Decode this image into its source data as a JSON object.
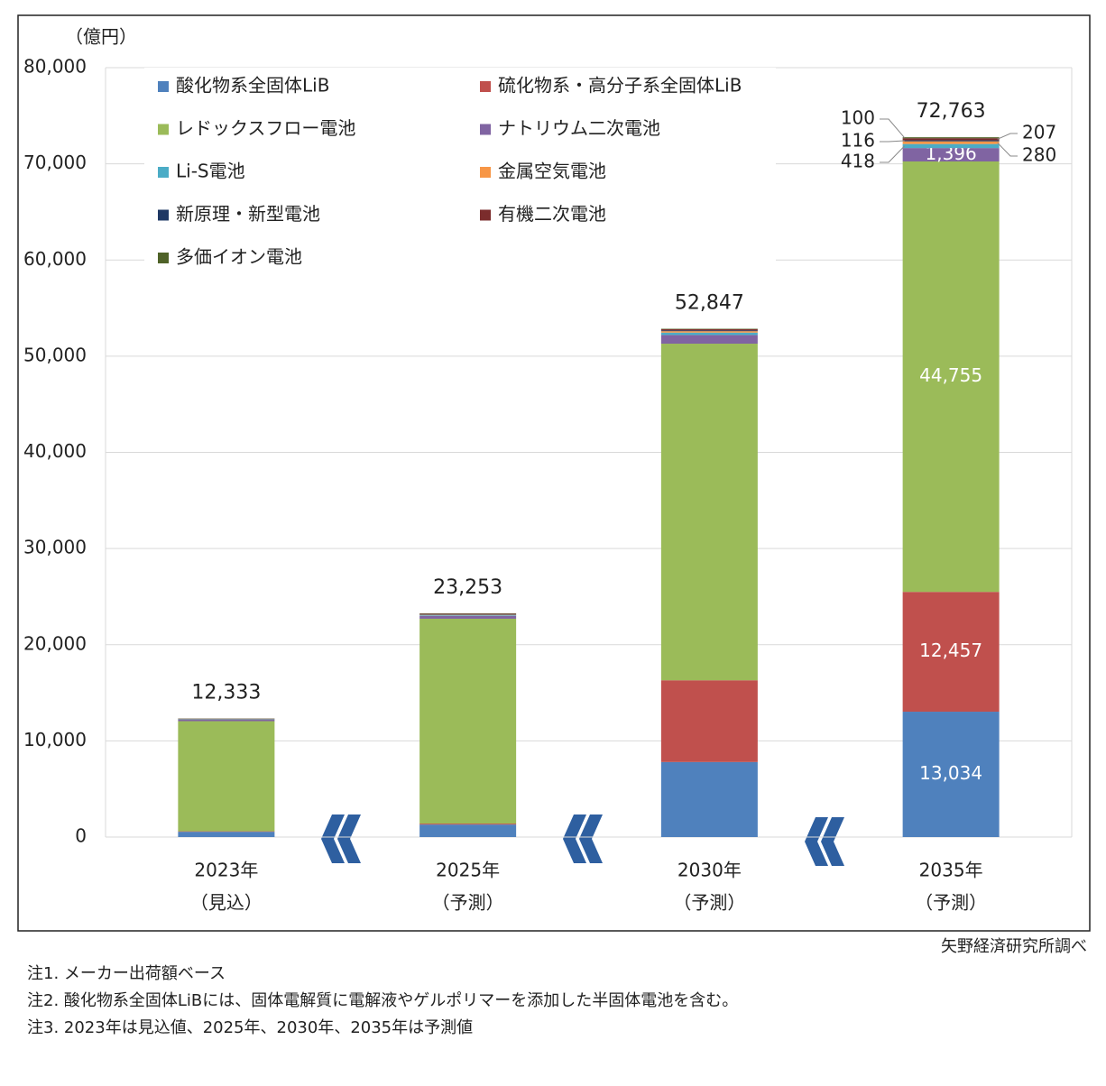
{
  "chart_data": {
    "type": "stacked_bar",
    "unit_label": "（億円）",
    "categories": [
      "2023年",
      "2025年",
      "2030年",
      "2035年"
    ],
    "category_notes": [
      "（見込）",
      "（予測）",
      "（予測）",
      "（予測）"
    ],
    "series": [
      {
        "name": "酸化物系全固体LiB",
        "color": "#4f81bd",
        "values": [
          550,
          1300,
          7800,
          13034
        ],
        "value_labels": [
          null,
          null,
          null,
          "13,034"
        ]
      },
      {
        "name": "硫化物系・高分子系全固体LiB",
        "color": "#c0504d",
        "values": [
          50,
          100,
          8500,
          12457
        ],
        "value_labels": [
          null,
          null,
          null,
          "12,457"
        ]
      },
      {
        "name": "レドックスフロー電池",
        "color": "#9bbb59",
        "values": [
          11450,
          21300,
          35000,
          44755
        ],
        "value_labels": [
          null,
          null,
          null,
          "44,755"
        ]
      },
      {
        "name": "ナトリウム二次電池",
        "color": "#8064a2",
        "values": [
          150,
          300,
          900,
          1396
        ],
        "value_labels": [
          null,
          null,
          null,
          "1,396"
        ]
      },
      {
        "name": "Li-S電池",
        "color": "#4bacc6",
        "values": [
          30,
          60,
          250,
          418
        ],
        "value_labels": [
          null,
          null,
          null,
          "418"
        ]
      },
      {
        "name": "金属空気電池",
        "color": "#f79646",
        "values": [
          20,
          40,
          150,
          280
        ],
        "value_labels": [
          null,
          null,
          null,
          "280"
        ]
      },
      {
        "name": "新原理・新型電池",
        "color": "#1f3864",
        "values": [
          30,
          50,
          80,
          116
        ],
        "value_labels": [
          null,
          null,
          null,
          "116"
        ]
      },
      {
        "name": "有機二次電池",
        "color": "#7b2c2c",
        "values": [
          30,
          60,
          120,
          207
        ],
        "value_labels": [
          null,
          null,
          null,
          "207"
        ]
      },
      {
        "name": "多価イオン電池",
        "color": "#4f6228",
        "values": [
          23,
          43,
          47,
          100
        ],
        "value_labels": [
          null,
          null,
          null,
          "100"
        ]
      }
    ],
    "totals": [
      12333,
      23253,
      52847,
      72763
    ],
    "total_labels": [
      "12,333",
      "23,253",
      "52,847",
      "72,763"
    ],
    "ylim": [
      0,
      80000
    ],
    "yticks": [
      0,
      {
        "value": 10000,
        "label": "10,000"
      },
      {
        "value": 20000,
        "label": "20,000"
      },
      {
        "value": 30000,
        "label": "30,000"
      },
      {
        "value": 40000,
        "label": "40,000"
      },
      {
        "value": 50000,
        "label": "50,000"
      },
      {
        "value": 60000,
        "label": "60,000"
      },
      {
        "value": 70000,
        "label": "70,000"
      },
      {
        "value": 80000,
        "label": "80,000"
      }
    ],
    "grid": true,
    "source": "矢野経済研究所調べ",
    "notes": [
      "注1.  メーカー出荷額ベース",
      "注2.  酸化物系全固体LiBには、固体電解質に電解液やゲルポリマーを添加した半固体電池を含む。",
      "注3.  2023年は見込値、2025年、2030年、2035年は予測値"
    ]
  }
}
